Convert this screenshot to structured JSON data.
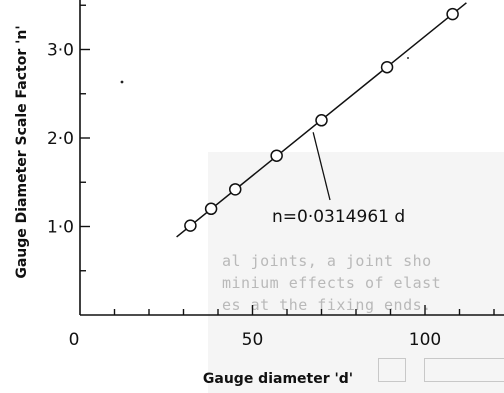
{
  "chart_data": {
    "type": "scatter",
    "xlabel": "Gauge diameter 'd'",
    "ylabel": "Gauge Diameter Scale Factor 'n'",
    "xlim": [
      0,
      125
    ],
    "ylim": [
      0,
      3.5
    ],
    "x_ticks": [
      "0",
      "50",
      "100"
    ],
    "y_ticks": [
      "1·0",
      "2·0",
      "3·0"
    ],
    "x_tick_values": [
      0,
      50,
      100
    ],
    "y_tick_values": [
      1.0,
      2.0,
      3.0
    ],
    "series": [
      {
        "points": [
          {
            "x": 32,
            "y": 1.01
          },
          {
            "x": 38,
            "y": 1.2
          },
          {
            "x": 45,
            "y": 1.42
          },
          {
            "x": 57,
            "y": 1.8
          },
          {
            "x": 70,
            "y": 2.2
          },
          {
            "x": 89,
            "y": 2.8
          },
          {
            "x": 108,
            "y": 3.4
          }
        ]
      }
    ],
    "fit_line": {
      "slope": 0.0314961,
      "x_range": [
        28,
        112
      ]
    },
    "annotation": {
      "text": "n=0·0314961 d",
      "points_to_x": 67
    },
    "grid": false,
    "legend": "none"
  },
  "background_text": {
    "lines": [
      "al joints, a joint sho",
      "minium effects of elast",
      "es at the fixing ends."
    ]
  }
}
